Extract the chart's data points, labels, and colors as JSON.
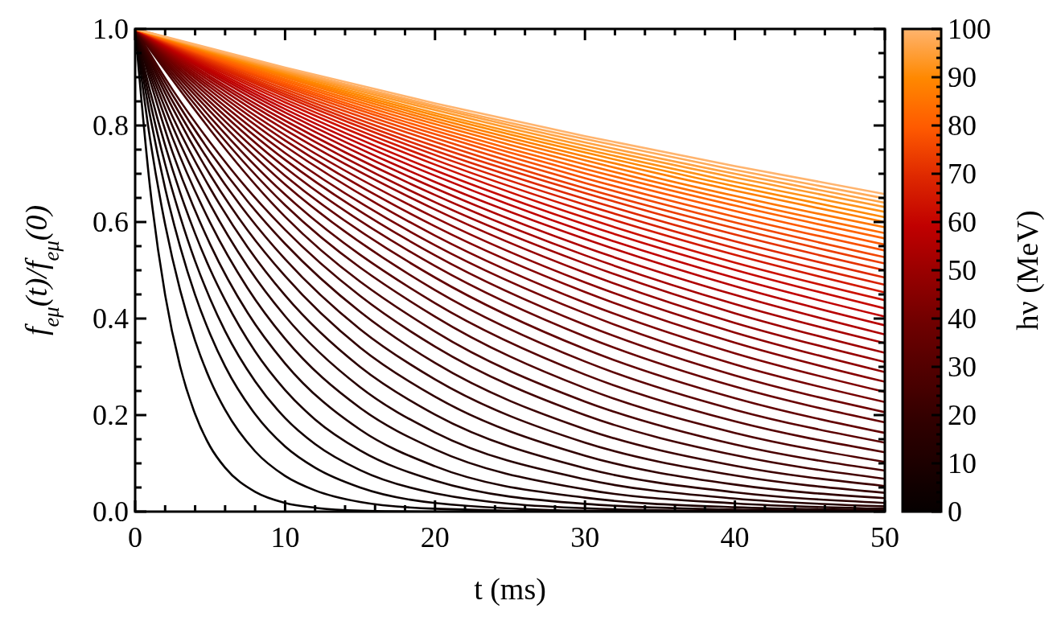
{
  "chart_data": {
    "type": "line",
    "xlabel": "t (ms)",
    "ylabel": "f$_{eμ}$(t)/f$_{eμ}$(0)",
    "clabel": "hν (MeV)",
    "xlim": [
      0,
      50
    ],
    "ylim": [
      0,
      1
    ],
    "xticks": [
      0,
      {
        "value": 2,
        "label": null
      },
      {
        "value": 4,
        "label": null
      },
      {
        "value": 6,
        "label": null
      },
      {
        "value": 8,
        "label": null
      },
      10,
      {
        "value": 12,
        "label": null
      },
      {
        "value": 14,
        "label": null
      },
      {
        "value": 16,
        "label": null
      },
      {
        "value": 18,
        "label": null
      },
      20,
      {
        "value": 22,
        "label": null
      },
      {
        "value": 24,
        "label": null
      },
      {
        "value": 26,
        "label": null
      },
      {
        "value": 28,
        "label": null
      },
      30,
      {
        "value": 32,
        "label": null
      },
      {
        "value": 34,
        "label": null
      },
      {
        "value": 36,
        "label": null
      },
      {
        "value": 38,
        "label": null
      },
      40,
      {
        "value": 42,
        "label": null
      },
      {
        "value": 44,
        "label": null
      },
      {
        "value": 46,
        "label": null
      },
      {
        "value": 48,
        "label": null
      },
      50
    ],
    "yticks": [
      {
        "value": 0,
        "label": "0.0"
      },
      {
        "value": 0.05,
        "label": null
      },
      {
        "value": 0.1,
        "label": null
      },
      {
        "value": 0.15,
        "label": null
      },
      {
        "value": 0.2,
        "label": "0.2"
      },
      {
        "value": 0.25,
        "label": null
      },
      {
        "value": 0.3,
        "label": null
      },
      {
        "value": 0.35,
        "label": null
      },
      {
        "value": 0.4,
        "label": "0.4"
      },
      {
        "value": 0.45,
        "label": null
      },
      {
        "value": 0.5,
        "label": null
      },
      {
        "value": 0.55,
        "label": null
      },
      {
        "value": 0.6,
        "label": "0.6"
      },
      {
        "value": 0.65,
        "label": null
      },
      {
        "value": 0.7,
        "label": null
      },
      {
        "value": 0.75,
        "label": null
      },
      {
        "value": 0.8,
        "label": "0.8"
      },
      {
        "value": 0.85,
        "label": null
      },
      {
        "value": 0.9,
        "label": null
      },
      {
        "value": 0.95,
        "label": null
      },
      {
        "value": 1,
        "label": "1.0"
      }
    ],
    "clim": [
      0,
      100
    ],
    "cticks": [
      0,
      {
        "value": 2,
        "label": null
      },
      {
        "value": 4,
        "label": null
      },
      {
        "value": 6,
        "label": null
      },
      {
        "value": 8,
        "label": null
      },
      10,
      {
        "value": 12,
        "label": null
      },
      {
        "value": 14,
        "label": null
      },
      {
        "value": 16,
        "label": null
      },
      {
        "value": 18,
        "label": null
      },
      20,
      {
        "value": 22,
        "label": null
      },
      {
        "value": 24,
        "label": null
      },
      {
        "value": 26,
        "label": null
      },
      {
        "value": 28,
        "label": null
      },
      30,
      {
        "value": 32,
        "label": null
      },
      {
        "value": 34,
        "label": null
      },
      {
        "value": 36,
        "label": null
      },
      {
        "value": 38,
        "label": null
      },
      40,
      {
        "value": 42,
        "label": null
      },
      {
        "value": 44,
        "label": null
      },
      {
        "value": 46,
        "label": null
      },
      {
        "value": 48,
        "label": null
      },
      50,
      {
        "value": 52,
        "label": null
      },
      {
        "value": 54,
        "label": null
      },
      {
        "value": 56,
        "label": null
      },
      {
        "value": 58,
        "label": null
      },
      60,
      {
        "value": 62,
        "label": null
      },
      {
        "value": 64,
        "label": null
      },
      {
        "value": 66,
        "label": null
      },
      {
        "value": 68,
        "label": null
      },
      70,
      {
        "value": 72,
        "label": null
      },
      {
        "value": 74,
        "label": null
      },
      {
        "value": 76,
        "label": null
      },
      {
        "value": 78,
        "label": null
      },
      80,
      {
        "value": 82,
        "label": null
      },
      {
        "value": 84,
        "label": null
      },
      {
        "value": 86,
        "label": null
      },
      {
        "value": 88,
        "label": null
      },
      90,
      {
        "value": 92,
        "label": null
      },
      {
        "value": 94,
        "label": null
      },
      {
        "value": 96,
        "label": null
      },
      {
        "value": 98,
        "label": null
      },
      100
    ],
    "series": [
      {
        "color": "#050000",
        "x": [
          0,
          1,
          2,
          3,
          4,
          5,
          6,
          8,
          10,
          12,
          15,
          20,
          30,
          40,
          50
        ],
        "values": [
          1,
          0.67,
          0.449,
          0.301,
          0.202,
          0.135,
          0.091,
          0.041,
          0.018,
          0.008,
          0.002,
          0,
          0,
          0,
          0
        ]
      },
      {
        "color": "#0a0000",
        "x": [
          0,
          1,
          2,
          3,
          4,
          5,
          6,
          8,
          10,
          12,
          15,
          20,
          30,
          40,
          50
        ],
        "values": [
          1,
          0.771,
          0.595,
          0.459,
          0.354,
          0.273,
          0.211,
          0.125,
          0.074,
          0.044,
          0.02,
          0.006,
          0,
          0,
          0
        ]
      },
      {
        "color": "#0e0000",
        "x": [
          0,
          1,
          2,
          3,
          4,
          5,
          6,
          8,
          10,
          12,
          15,
          20,
          30,
          40,
          50
        ],
        "values": [
          1,
          0.819,
          0.67,
          0.549,
          0.449,
          0.368,
          0.301,
          0.202,
          0.135,
          0.091,
          0.05,
          0.018,
          0.002,
          0,
          0
        ]
      },
      {
        "color": "#130000",
        "x": [
          0,
          1,
          2,
          3,
          4,
          5,
          6,
          8,
          10,
          12,
          15,
          20,
          30,
          40,
          50
        ],
        "values": [
          1,
          0.849,
          0.72,
          0.612,
          0.519,
          0.441,
          0.374,
          0.27,
          0.194,
          0.14,
          0.086,
          0.038,
          0.007,
          0.001,
          0
        ]
      },
      {
        "color": "#180000",
        "x": [
          0,
          1,
          2,
          3,
          4,
          5,
          6,
          8,
          10,
          12,
          15,
          20,
          30,
          40,
          50
        ],
        "values": [
          1,
          0.871,
          0.759,
          0.661,
          0.576,
          0.502,
          0.438,
          0.332,
          0.252,
          0.191,
          0.127,
          0.064,
          0.016,
          0.004,
          0.001
        ]
      },
      {
        "color": "#1d0000",
        "x": [
          0,
          2.5,
          5,
          7.5,
          10,
          15,
          20,
          30,
          40,
          50
        ],
        "values": [
          1,
          0.744,
          0.554,
          0.412,
          0.307,
          0.17,
          0.094,
          0.029,
          0.009,
          0.003
        ]
      },
      {
        "color": "#220000",
        "x": [
          0,
          2.5,
          5,
          7.5,
          10,
          15,
          20,
          30,
          40,
          50
        ],
        "values": [
          1,
          0.774,
          0.599,
          0.463,
          0.358,
          0.215,
          0.129,
          0.046,
          0.017,
          0.006
        ]
      },
      {
        "color": "#260000",
        "x": [
          0,
          2.5,
          5,
          7.5,
          10,
          15,
          20,
          30,
          40,
          50
        ],
        "values": [
          1,
          0.798,
          0.637,
          0.508,
          0.405,
          0.258,
          0.164,
          0.067,
          0.027,
          0.011
        ]
      },
      {
        "color": "#2b0000",
        "x": [
          0,
          2.5,
          5,
          7.5,
          10,
          15,
          20,
          30,
          40,
          50
        ],
        "values": [
          1,
          0.818,
          0.67,
          0.548,
          0.448,
          0.3,
          0.201,
          0.09,
          0.04,
          0.018
        ]
      },
      {
        "color": "#300000",
        "x": [
          0,
          2.5,
          5,
          7.5,
          10,
          15,
          20,
          30,
          40,
          50
        ],
        "values": [
          1,
          0.836,
          0.698,
          0.583,
          0.488,
          0.34,
          0.238,
          0.116,
          0.056,
          0.028
        ]
      },
      {
        "color": "#360000",
        "x": [
          0,
          2.5,
          5,
          7.5,
          10,
          15,
          20,
          30,
          40,
          50
        ],
        "values": [
          1,
          0.85,
          0.723,
          0.615,
          0.523,
          0.378,
          0.274,
          0.143,
          0.075,
          0.039
        ]
      },
      {
        "color": "#3c0000",
        "x": [
          0,
          2.5,
          5,
          7.5,
          10,
          15,
          20,
          30,
          40,
          50
        ],
        "values": [
          1,
          0.863,
          0.745,
          0.643,
          0.555,
          0.414,
          0.308,
          0.171,
          0.095,
          0.053
        ]
      },
      {
        "color": "#430000",
        "x": [
          0,
          2.5,
          5,
          7.5,
          10,
          15,
          20,
          30,
          40,
          50
        ],
        "values": [
          1,
          0.874,
          0.765,
          0.668,
          0.584,
          0.447,
          0.342,
          0.2,
          0.117,
          0.068
        ]
      },
      {
        "color": "#490000",
        "x": [
          0,
          10,
          20,
          30,
          40,
          50
        ],
        "values": [
          1,
          0.611,
          0.373,
          0.228,
          0.139,
          0.085
        ]
      },
      {
        "color": "#4f0000",
        "x": [
          0,
          10,
          20,
          30,
          40,
          50
        ],
        "values": [
          1,
          0.635,
          0.404,
          0.256,
          0.163,
          0.103
        ]
      },
      {
        "color": "#550000",
        "x": [
          0,
          10,
          20,
          30,
          40,
          50
        ],
        "values": [
          1,
          0.657,
          0.432,
          0.284,
          0.187,
          0.123
        ]
      },
      {
        "color": "#5b0000",
        "x": [
          0,
          10,
          20,
          30,
          40,
          50
        ],
        "values": [
          1,
          0.678,
          0.459,
          0.311,
          0.211,
          0.143
        ]
      },
      {
        "color": "#620000",
        "x": [
          0,
          10,
          20,
          30,
          40,
          50
        ],
        "values": [
          1,
          0.696,
          0.485,
          0.337,
          0.235,
          0.163
        ]
      },
      {
        "color": "#680000",
        "x": [
          0,
          10,
          20,
          30,
          40,
          50
        ],
        "values": [
          1,
          0.713,
          0.509,
          0.363,
          0.259,
          0.185
        ]
      },
      {
        "color": "#6e0000",
        "x": [
          0,
          10,
          20,
          30,
          40,
          50
        ],
        "values": [
          1,
          0.729,
          0.531,
          0.387,
          0.282,
          0.206
        ]
      },
      {
        "color": "#760000",
        "x": [
          0,
          10,
          20,
          30,
          40,
          50
        ],
        "values": [
          1,
          0.743,
          0.552,
          0.411,
          0.305,
          0.227
        ]
      },
      {
        "color": "#7e0000",
        "x": [
          0,
          10,
          20,
          30,
          40,
          50
        ],
        "values": [
          1,
          0.757,
          0.572,
          0.433,
          0.328,
          0.248
        ]
      },
      {
        "color": "#860000",
        "x": [
          0,
          10,
          20,
          30,
          40,
          50
        ],
        "values": [
          1,
          0.769,
          0.591,
          0.455,
          0.35,
          0.269
        ]
      },
      {
        "color": "#8e0000",
        "x": [
          0,
          10,
          20,
          30,
          40,
          50
        ],
        "values": [
          1,
          0.78,
          0.609,
          0.475,
          0.371,
          0.289
        ]
      },
      {
        "color": "#960000",
        "x": [
          0,
          10,
          20,
          30,
          40,
          50
        ],
        "values": [
          1,
          0.791,
          0.626,
          0.495,
          0.391,
          0.31
        ]
      },
      {
        "color": "#9e0000",
        "x": [
          0,
          10,
          20,
          30,
          40,
          50
        ],
        "values": [
          1,
          0.801,
          0.641,
          0.514,
          0.411,
          0.329
        ]
      },
      {
        "color": "#a70000",
        "x": [
          0,
          10,
          20,
          30,
          40,
          50
        ],
        "values": [
          1,
          0.81,
          0.656,
          0.531,
          0.43,
          0.349
        ]
      },
      {
        "color": "#af0000",
        "x": [
          0,
          10,
          20,
          30,
          40,
          50
        ],
        "values": [
          1,
          0.819,
          0.67,
          0.548,
          0.449,
          0.367
        ]
      },
      {
        "color": "#b80000",
        "x": [
          0,
          10,
          20,
          30,
          40,
          50
        ],
        "values": [
          1,
          0.827,
          0.683,
          0.565,
          0.467,
          0.386
        ]
      },
      {
        "color": "#c00000",
        "x": [
          0,
          10,
          20,
          30,
          40,
          50
        ],
        "values": [
          1,
          0.834,
          0.696,
          0.58,
          0.484,
          0.404
        ]
      },
      {
        "color": "#c60800",
        "x": [
          0,
          10,
          20,
          30,
          40,
          50
        ],
        "values": [
          1,
          0.841,
          0.707,
          0.595,
          0.501,
          0.421
        ]
      },
      {
        "color": "#cc1000",
        "x": [
          0,
          10,
          20,
          30,
          40,
          50
        ],
        "values": [
          1,
          0.848,
          0.719,
          0.609,
          0.516,
          0.438
        ]
      },
      {
        "color": "#d21800",
        "x": [
          0,
          10,
          20,
          30,
          40,
          50
        ],
        "values": [
          1,
          0.854,
          0.729,
          0.623,
          0.532,
          0.454
        ]
      },
      {
        "color": "#d82000",
        "x": [
          0,
          10,
          20,
          30,
          40,
          50
        ],
        "values": [
          1,
          0.86,
          0.739,
          0.636,
          0.546,
          0.47
        ]
      },
      {
        "color": "#de2800",
        "x": [
          0,
          10,
          20,
          30,
          40,
          50
        ],
        "values": [
          1,
          0.865,
          0.748,
          0.648,
          0.56,
          0.485
        ]
      },
      {
        "color": "#e53200",
        "x": [
          0,
          10,
          20,
          30,
          40,
          50
        ],
        "values": [
          1,
          0.87,
          0.757,
          0.66,
          0.574,
          0.5
        ]
      },
      {
        "color": "#eb3c00",
        "x": [
          0,
          10,
          20,
          30,
          40,
          50
        ],
        "values": [
          1,
          0.875,
          0.766,
          0.67,
          0.587,
          0.514
        ]
      },
      {
        "color": "#f24600",
        "x": [
          0,
          10,
          20,
          30,
          40,
          50
        ],
        "values": [
          1,
          0.88,
          0.774,
          0.681,
          0.599,
          0.527
        ]
      },
      {
        "color": "#f85000",
        "x": [
          0,
          10,
          20,
          30,
          40,
          50
        ],
        "values": [
          1,
          0.884,
          0.782,
          0.691,
          0.611,
          0.541
        ]
      },
      {
        "color": "#ff5a00",
        "x": [
          0,
          10,
          20,
          30,
          40,
          50
        ],
        "values": [
          1,
          0.888,
          0.789,
          0.701,
          0.623,
          0.553
        ]
      },
      {
        "color": "#ff6300",
        "x": [
          0,
          10,
          20,
          30,
          40,
          50
        ],
        "values": [
          1,
          0.892,
          0.796,
          0.71,
          0.634,
          0.566
        ]
      },
      {
        "color": "#ff6c00",
        "x": [
          0,
          10,
          20,
          30,
          40,
          50
        ],
        "values": [
          1,
          0.896,
          0.803,
          0.719,
          0.644,
          0.577
        ]
      },
      {
        "color": "#ff7600",
        "x": [
          0,
          10,
          20,
          30,
          40,
          50
        ],
        "values": [
          1,
          0.9,
          0.809,
          0.728,
          0.654,
          0.589
        ]
      },
      {
        "color": "#ff7f00",
        "x": [
          0,
          10,
          20,
          30,
          40,
          50
        ],
        "values": [
          1,
          0.903,
          0.815,
          0.736,
          0.665,
          0.6
        ]
      },
      {
        "color": "#ff8800",
        "x": [
          0,
          10,
          20,
          30,
          40,
          50
        ],
        "values": [
          1,
          0.906,
          0.821,
          0.744,
          0.674,
          0.61
        ]
      },
      {
        "color": "#ff9116",
        "x": [
          0,
          10,
          20,
          30,
          40,
          50
        ],
        "values": [
          1,
          0.909,
          0.826,
          0.751,
          0.683,
          0.621
        ]
      },
      {
        "color": "#ff9a2c",
        "x": [
          0,
          10,
          20,
          30,
          40,
          50
        ],
        "values": [
          1,
          0.912,
          0.832,
          0.758,
          0.692,
          0.631
        ]
      },
      {
        "color": "#ffa242",
        "x": [
          0,
          10,
          20,
          30,
          40,
          50
        ],
        "values": [
          1,
          0.915,
          0.837,
          0.765,
          0.7,
          0.64
        ]
      },
      {
        "color": "#ffab58",
        "x": [
          0,
          10,
          20,
          30,
          40,
          50
        ],
        "values": [
          1,
          0.917,
          0.841,
          0.772,
          0.708,
          0.649
        ]
      },
      {
        "color": "#ffb46e",
        "x": [
          0,
          10,
          20,
          30,
          40,
          50
        ],
        "values": [
          1,
          0.92,
          0.846,
          0.778,
          0.716,
          0.658
        ]
      }
    ]
  }
}
